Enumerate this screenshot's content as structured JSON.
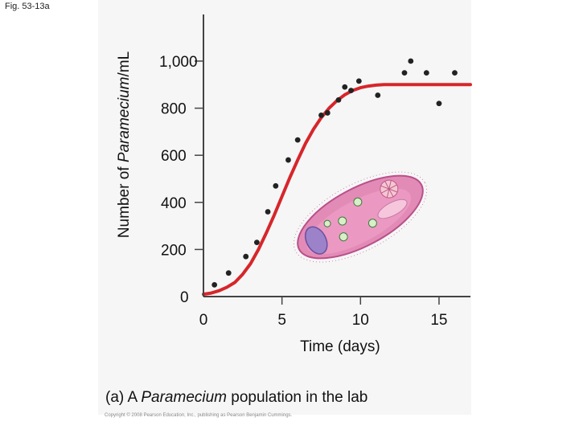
{
  "figure_label": "Fig. 53-13a",
  "ylabel_pre": "Number of ",
  "ylabel_italic": "Paramecium",
  "ylabel_post": "/mL",
  "caption_pre": "(a) A ",
  "caption_italic": "Paramecium",
  "caption_post": " population in the lab",
  "copyright": "Copyright © 2008 Pearson Education, Inc., publishing as Pearson Benjamin Cummings.",
  "colors": {
    "curve": "#d6262b",
    "points": "#222222",
    "axis": "#444444",
    "panel": "#f6f6f6",
    "paramecium": "#d97aa8"
  },
  "chart_data": {
    "type": "scatter",
    "title": "",
    "xlabel": "Time (days)",
    "ylabel": "Number of Paramecium/mL",
    "xlim": [
      0,
      17
    ],
    "ylim": [
      0,
      1000
    ],
    "xticks": [
      0,
      5,
      10,
      15
    ],
    "xtick_labels": [
      "0",
      "5",
      "10",
      "15"
    ],
    "yticks": [
      0,
      200,
      400,
      600,
      800,
      1000
    ],
    "ytick_labels": [
      "0",
      "200",
      "400",
      "600",
      "800",
      "1,000"
    ],
    "grid": false,
    "points": [
      {
        "x": 0.7,
        "y": 50
      },
      {
        "x": 1.6,
        "y": 100
      },
      {
        "x": 2.7,
        "y": 170
      },
      {
        "x": 3.4,
        "y": 230
      },
      {
        "x": 4.1,
        "y": 360
      },
      {
        "x": 4.6,
        "y": 470
      },
      {
        "x": 5.4,
        "y": 580
      },
      {
        "x": 6.0,
        "y": 665
      },
      {
        "x": 7.5,
        "y": 770
      },
      {
        "x": 7.9,
        "y": 780
      },
      {
        "x": 8.6,
        "y": 835
      },
      {
        "x": 9.0,
        "y": 890
      },
      {
        "x": 9.4,
        "y": 875
      },
      {
        "x": 9.9,
        "y": 915
      },
      {
        "x": 11.1,
        "y": 855
      },
      {
        "x": 12.8,
        "y": 950
      },
      {
        "x": 13.2,
        "y": 1000
      },
      {
        "x": 14.2,
        "y": 950
      },
      {
        "x": 15.0,
        "y": 820
      },
      {
        "x": 16.0,
        "y": 950
      }
    ],
    "curve": {
      "x": [
        0,
        0.5,
        1,
        1.5,
        2,
        2.5,
        3,
        3.5,
        4,
        4.5,
        5,
        5.5,
        6,
        6.5,
        7,
        7.5,
        8,
        8.5,
        9,
        9.5,
        10,
        10.5,
        11,
        11.5,
        12,
        12.5,
        13,
        14,
        15,
        16,
        17
      ],
      "y": [
        10,
        15,
        25,
        40,
        60,
        95,
        140,
        200,
        270,
        345,
        425,
        505,
        580,
        650,
        710,
        760,
        800,
        832,
        857,
        875,
        887,
        894,
        898,
        900,
        900,
        900,
        900,
        900,
        900,
        900,
        900
      ]
    }
  }
}
